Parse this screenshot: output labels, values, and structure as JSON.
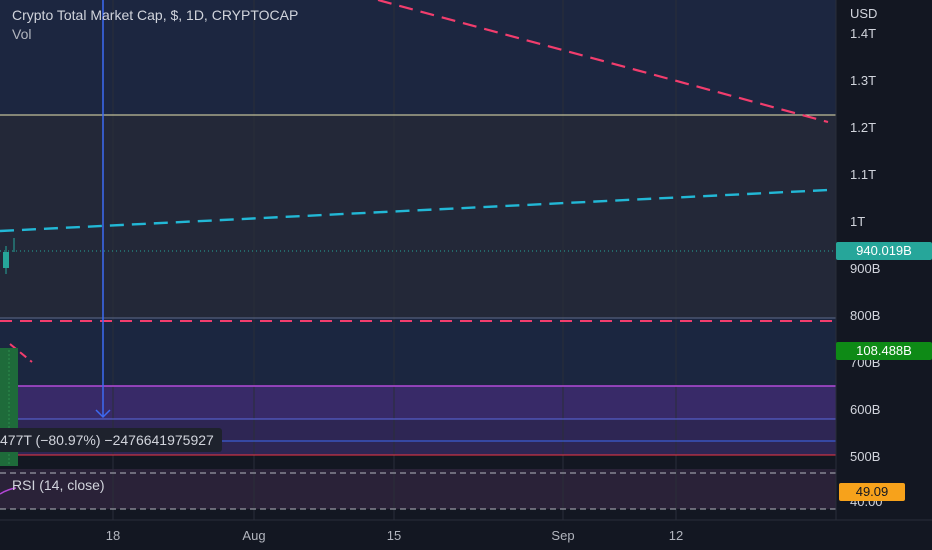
{
  "header": {
    "title": "Crypto Total Market Cap, $, 1D, CRYPTOCAP",
    "indicator": "Vol",
    "currency": "USD"
  },
  "price_axis": {
    "ticks": [
      "1.4T",
      "1.3T",
      "1.2T",
      "1.1T",
      "1T",
      "900B",
      "800B",
      "700B",
      "600B",
      "500B"
    ]
  },
  "time_axis": {
    "ticks": [
      "18",
      "Aug",
      "15",
      "Sep",
      "12"
    ]
  },
  "labels": {
    "last_price": "940.019B",
    "measure_value": "108.488B",
    "measure_text": "477T (−80.97%) −2476641975927",
    "rsi_title": "RSI (14, close)",
    "rsi_value": "49.09",
    "rsi_axis_tick": "40.00"
  },
  "colors": {
    "background": "#131722",
    "upper_zone": "#1e2a48",
    "purple_zone": "#3a2a6b",
    "red_dashed": "#f23d6d",
    "cyan_dashed": "#22b8d6",
    "blue_line": "#3d6af2",
    "price_tag": "#26a69a",
    "measure_tag": "#0e8a16",
    "rsi_tag": "#f7a21b"
  },
  "chart_data": {
    "type": "line",
    "title": "Crypto Total Market Cap, $, 1D, CRYPTOCAP",
    "ylabel": "USD",
    "ylim": [
      450000000000,
      1460000000000
    ],
    "last_price": 940019000000,
    "horizontal_levels": [
      1230000000000,
      795000000000,
      650000000000,
      583000000000,
      535000000000,
      508000000000
    ],
    "trendlines": [
      {
        "style": "dashed",
        "color": "#f23d6d",
        "from": 1500000000000,
        "to": 1210000000000
      },
      {
        "style": "dashed",
        "color": "#22b8d6",
        "from": 980000000000,
        "to": 1065000000000
      }
    ],
    "rsi": {
      "period": 14,
      "source": "close",
      "value": 49.09
    }
  }
}
